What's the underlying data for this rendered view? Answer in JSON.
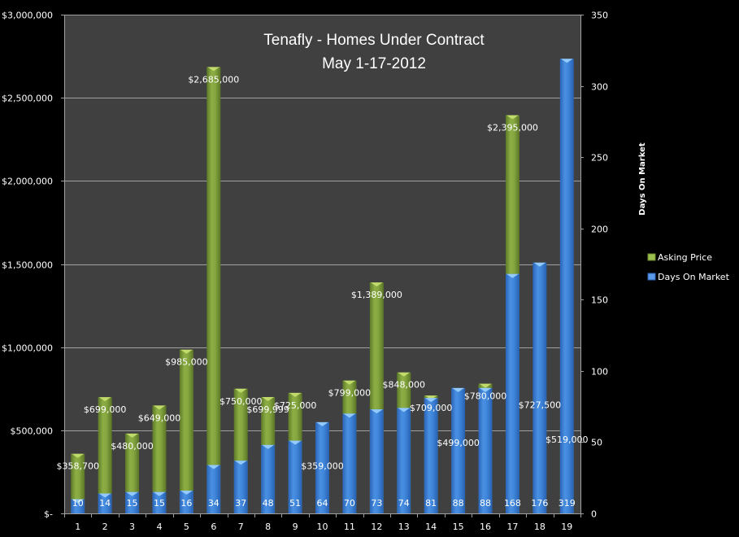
{
  "chart_data": {
    "type": "bar",
    "title": "Tenafly - Homes Under Contract",
    "subtitle": "May 1-17-2012",
    "xlabel": "",
    "ylabel": "",
    "y2label": "Days On Market",
    "categories": [
      "1",
      "2",
      "3",
      "4",
      "5",
      "6",
      "7",
      "8",
      "9",
      "10",
      "11",
      "12",
      "13",
      "14",
      "15",
      "16",
      "17",
      "18",
      "19"
    ],
    "series": [
      {
        "name": "Asking Price",
        "axis": "left",
        "color": "#7a9a3a",
        "values": [
          358700,
          699000,
          480000,
          649000,
          985000,
          2685000,
          750000,
          699999,
          725000,
          359000,
          799000,
          1389000,
          848000,
          709000,
          499000,
          780000,
          2395000,
          727500,
          519000
        ],
        "labels": [
          "$358,700",
          "$699,000",
          "$480,000",
          "$649,000",
          "$985,000",
          "$2,685,000",
          "$750,000",
          "$699,999",
          "$725,000",
          "$359,000",
          "$799,000",
          "$1,389,000",
          "$848,000",
          "$709,000",
          "$499,000",
          "$780,000",
          "$2,395,000",
          "$727,500",
          "$519,000"
        ]
      },
      {
        "name": "Days On Market",
        "axis": "right",
        "color": "#3a7ed0",
        "values": [
          10,
          14,
          15,
          15,
          16,
          34,
          37,
          48,
          51,
          64,
          70,
          73,
          74,
          81,
          88,
          88,
          168,
          176,
          319
        ],
        "labels": [
          "10",
          "14",
          "15",
          "15",
          "16",
          "34",
          "37",
          "48",
          "51",
          "64",
          "70",
          "73",
          "74",
          "81",
          "88",
          "88",
          "168",
          "176",
          "319"
        ]
      }
    ],
    "ylim": [
      0,
      3000000
    ],
    "y2lim": [
      0,
      350
    ],
    "yticks": [
      "$-",
      "$500,000",
      "$1,000,000",
      "$1,500,000",
      "$2,000,000",
      "$2,500,000",
      "$3,000,000"
    ],
    "y2ticks": [
      "0",
      "50",
      "100",
      "150",
      "200",
      "250",
      "300",
      "350"
    ],
    "grid": true,
    "legend_position": "right",
    "legend": [
      "Asking Price",
      "Days On Market"
    ],
    "background": "#404040",
    "page_background": "#000000"
  }
}
